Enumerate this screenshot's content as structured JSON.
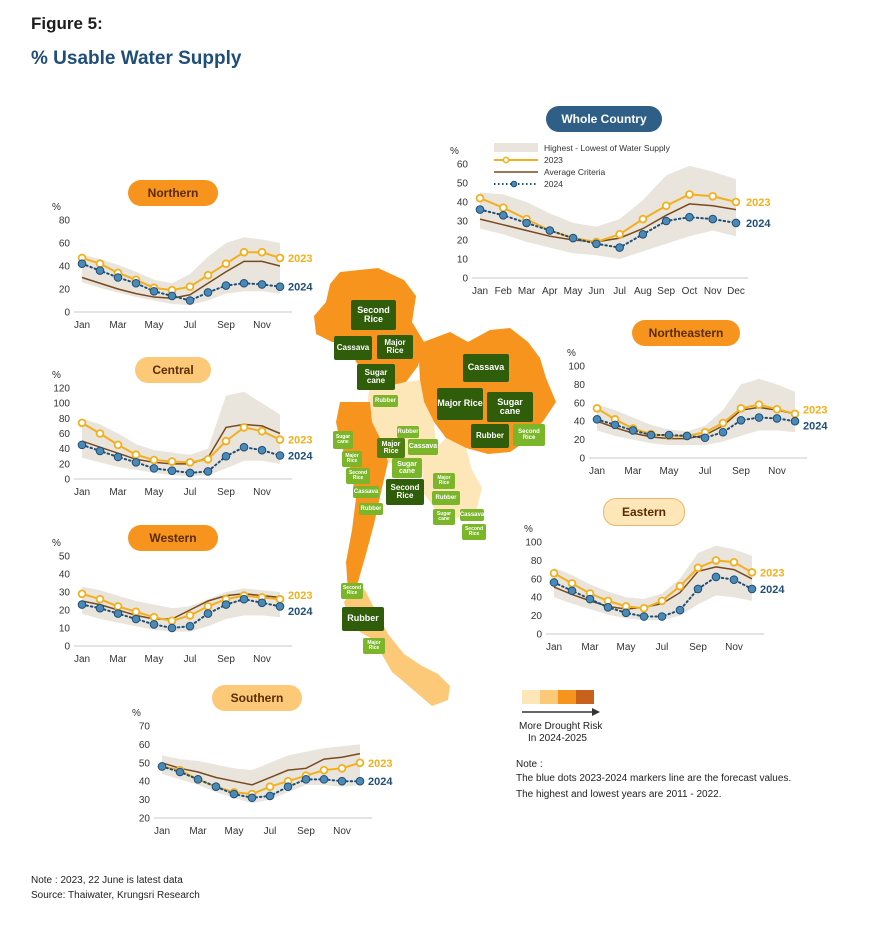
{
  "figure_label": "Figure 5:",
  "title": "% Usable Water Supply",
  "legend": {
    "band": "Highest - Lowest of Water Supply",
    "y2023": "2023",
    "avg": "Average Criteria",
    "y2024": "2024"
  },
  "colors": {
    "c2023": "#f2b01e",
    "c2024": "#1f4e79",
    "avg": "#7a4a1e",
    "band": "#e9e4dc",
    "dot2024": "#4a8ab5"
  },
  "drought": {
    "label": "More Drought Risk",
    "label2": "In 2024-2025",
    "colors": [
      "#fde6b8",
      "#fcc978",
      "#f7941d",
      "#c8611b"
    ]
  },
  "note": {
    "heading": "Note :",
    "line1": "The blue dots 2023-2024 markers line are the forecast values.",
    "line2": "The highest and lowest years are 2011 - 2022."
  },
  "footer": {
    "line1": "Note : 2023, 22 June is latest data",
    "line2": "Source: Thaiwater, Krungsri Research"
  },
  "map_labels": {
    "north_second_rice": "Second Rice",
    "north_cassava": "Cassava",
    "north_major_rice": "Major Rice",
    "north_sugarcane": "Sugar cane",
    "north_rubber": "Rubber",
    "ne_cassava": "Cassava",
    "ne_major_rice": "Major Rice",
    "ne_sugarcane": "Sugar cane",
    "ne_rubber": "Rubber",
    "ne_second_rice": "Second Rice",
    "c_rubber": "Rubber",
    "c_major_rice": "Major Rice",
    "c_cassava": "Cassava",
    "c_sugarcane": "Sugar cane",
    "c_second_rice": "Second Rice",
    "w_sugarcane": "Sugar cane",
    "w_major_rice": "Major Rice",
    "w_second_rice": "Second Rice",
    "w_cassava": "Cassava",
    "w_rubber": "Rubber",
    "e_major_rice": "Major Rice",
    "e_rubber": "Rubber",
    "e_sugarcane": "Sugar cane",
    "e_cassava": "Cassava",
    "e_second_rice": "Second Rice",
    "s_second_rice": "Second Rice",
    "s_rubber": "Rubber",
    "s_major_rice": "Major Rice"
  },
  "chart_data": [
    {
      "id": "whole",
      "title": "Whole Country",
      "type": "line",
      "ylabel": "%",
      "yticks": [
        0,
        10,
        20,
        30,
        40,
        50,
        60
      ],
      "x": [
        "Jan",
        "Feb",
        "Mar",
        "Apr",
        "May",
        "Jun",
        "Jul",
        "Aug",
        "Sep",
        "Oct",
        "Nov",
        "Dec"
      ],
      "xticks": [
        "Jan",
        "Feb",
        "Mar",
        "Apr",
        "May",
        "Jun",
        "Jul",
        "Aug",
        "Sep",
        "Oct",
        "Nov",
        "Dec"
      ],
      "end_labels": {
        "y2023": "2023",
        "y2024": "2024"
      },
      "series": [
        {
          "name": "2023",
          "values": [
            42,
            37,
            31,
            25,
            21,
            19,
            23,
            31,
            38,
            44,
            43,
            40
          ]
        },
        {
          "name": "2024",
          "values": [
            36,
            33,
            29,
            25,
            21,
            18,
            16,
            23,
            30,
            32,
            31,
            29
          ]
        },
        {
          "name": "Average Criteria",
          "values": [
            31,
            28,
            25,
            22,
            20,
            19,
            21,
            26,
            33,
            39,
            38,
            36
          ]
        }
      ],
      "band": {
        "high": [
          45,
          44,
          40,
          34,
          29,
          27,
          31,
          41,
          54,
          59,
          56,
          52
        ],
        "low": [
          26,
          23,
          19,
          16,
          13,
          12,
          10,
          14,
          18,
          22,
          25,
          22
        ]
      }
    },
    {
      "id": "northern",
      "title": "Northern",
      "type": "line",
      "ylabel": "%",
      "yticks": [
        0,
        20,
        40,
        60,
        80
      ],
      "x": [
        "Jan",
        "Feb",
        "Mar",
        "Apr",
        "May",
        "Jun",
        "Jul",
        "Aug",
        "Sep",
        "Oct",
        "Nov",
        "Dec"
      ],
      "xticks": [
        "Jan",
        "Mar",
        "May",
        "Jul",
        "Sep",
        "Nov"
      ],
      "end_labels": {
        "y2023": "2023",
        "y2024": "2024"
      },
      "series": [
        {
          "name": "2023",
          "values": [
            47,
            42,
            34,
            28,
            21,
            19,
            22,
            32,
            42,
            52,
            52,
            47
          ]
        },
        {
          "name": "2024",
          "values": [
            42,
            36,
            30,
            25,
            18,
            14,
            10,
            17,
            23,
            25,
            24,
            22
          ]
        },
        {
          "name": "Average Criteria",
          "values": [
            30,
            25,
            20,
            16,
            13,
            12,
            15,
            25,
            35,
            44,
            44,
            40
          ]
        }
      ],
      "band": {
        "high": [
          50,
          46,
          41,
          35,
          28,
          25,
          33,
          48,
          60,
          65,
          63,
          60
        ],
        "low": [
          26,
          21,
          17,
          13,
          10,
          7,
          6,
          10,
          16,
          18,
          18,
          16
        ]
      }
    },
    {
      "id": "central",
      "title": "Central",
      "type": "line",
      "ylabel": "%",
      "yticks": [
        0,
        20,
        40,
        60,
        80,
        100,
        120
      ],
      "x": [
        "Jan",
        "Feb",
        "Mar",
        "Apr",
        "May",
        "Jun",
        "Jul",
        "Aug",
        "Sep",
        "Oct",
        "Nov",
        "Dec"
      ],
      "xticks": [
        "Jan",
        "Mar",
        "May",
        "Jul",
        "Sep",
        "Nov"
      ],
      "end_labels": {
        "y2023": "2023",
        "y2024": "2024"
      },
      "series": [
        {
          "name": "2023",
          "values": [
            74,
            60,
            45,
            32,
            25,
            23,
            22,
            26,
            50,
            68,
            63,
            52
          ]
        },
        {
          "name": "2024",
          "values": [
            45,
            37,
            29,
            22,
            14,
            11,
            8,
            10,
            30,
            42,
            38,
            31
          ]
        },
        {
          "name": "Average Criteria",
          "values": [
            50,
            42,
            34,
            26,
            22,
            20,
            20,
            28,
            68,
            72,
            70,
            60
          ]
        }
      ],
      "band": {
        "high": [
          80,
          72,
          60,
          46,
          38,
          35,
          32,
          40,
          110,
          115,
          100,
          85
        ],
        "low": [
          28,
          22,
          16,
          12,
          8,
          5,
          4,
          5,
          14,
          24,
          24,
          20
        ]
      }
    },
    {
      "id": "western",
      "title": "Western",
      "type": "line",
      "ylabel": "%",
      "yticks": [
        0,
        10,
        20,
        30,
        40,
        50
      ],
      "x": [
        "Jan",
        "Feb",
        "Mar",
        "Apr",
        "May",
        "Jun",
        "Jul",
        "Aug",
        "Sep",
        "Oct",
        "Nov",
        "Dec"
      ],
      "xticks": [
        "Jan",
        "Mar",
        "May",
        "Jul",
        "Sep",
        "Nov"
      ],
      "end_labels": {
        "y2023": "2023",
        "y2024": "2024"
      },
      "series": [
        {
          "name": "2023",
          "values": [
            29,
            26,
            22,
            19,
            16,
            14,
            17,
            22,
            26,
            28,
            27,
            26
          ]
        },
        {
          "name": "2024",
          "values": [
            23,
            21,
            18,
            15,
            12,
            10,
            11,
            18,
            23,
            26,
            24,
            22
          ]
        },
        {
          "name": "Average Criteria",
          "values": [
            25,
            23,
            20,
            17,
            15,
            15,
            20,
            25,
            28,
            29,
            28,
            27
          ]
        }
      ],
      "band": {
        "high": [
          33,
          31,
          28,
          25,
          23,
          21,
          22,
          26,
          30,
          32,
          31,
          30
        ],
        "low": [
          18,
          15,
          13,
          11,
          9,
          8,
          8,
          11,
          15,
          17,
          17,
          16
        ]
      }
    },
    {
      "id": "northeastern",
      "title": "Northeastern",
      "type": "line",
      "ylabel": "%",
      "yticks": [
        0,
        20,
        40,
        60,
        80,
        100
      ],
      "x": [
        "Jan",
        "Feb",
        "Mar",
        "Apr",
        "May",
        "Jun",
        "Jul",
        "Aug",
        "Sep",
        "Oct",
        "Nov",
        "Dec"
      ],
      "xticks": [
        "Jan",
        "Mar",
        "May",
        "Jul",
        "Sep",
        "Nov"
      ],
      "end_labels": {
        "y2023": "2023",
        "y2024": "2024"
      },
      "series": [
        {
          "name": "2023",
          "values": [
            54,
            42,
            32,
            26,
            24,
            24,
            28,
            38,
            54,
            58,
            53,
            48
          ]
        },
        {
          "name": "2024",
          "values": [
            42,
            36,
            30,
            25,
            25,
            24,
            22,
            28,
            41,
            44,
            43,
            40
          ]
        },
        {
          "name": "Average Criteria",
          "values": [
            40,
            33,
            27,
            23,
            21,
            21,
            25,
            35,
            52,
            55,
            52,
            48
          ]
        }
      ],
      "band": {
        "high": [
          58,
          52,
          44,
          36,
          31,
          29,
          35,
          52,
          80,
          86,
          80,
          72
        ],
        "low": [
          30,
          24,
          20,
          16,
          14,
          14,
          14,
          18,
          24,
          30,
          30,
          28
        ]
      }
    },
    {
      "id": "eastern",
      "title": "Eastern",
      "type": "line",
      "ylabel": "%",
      "yticks": [
        0,
        20,
        40,
        60,
        80,
        100
      ],
      "x": [
        "Jan",
        "Feb",
        "Mar",
        "Apr",
        "May",
        "Jun",
        "Jul",
        "Aug",
        "Sep",
        "Oct",
        "Nov",
        "Dec"
      ],
      "xticks": [
        "Jan",
        "Mar",
        "May",
        "Jul",
        "Sep",
        "Nov"
      ],
      "end_labels": {
        "y2023": "2023",
        "y2024": "2024"
      },
      "series": [
        {
          "name": "2023",
          "values": [
            66,
            55,
            44,
            36,
            30,
            28,
            36,
            52,
            72,
            80,
            78,
            67
          ]
        },
        {
          "name": "2024",
          "values": [
            56,
            47,
            38,
            29,
            23,
            19,
            19,
            26,
            49,
            62,
            59,
            49
          ]
        },
        {
          "name": "Average Criteria",
          "values": [
            51,
            43,
            36,
            30,
            27,
            29,
            33,
            45,
            68,
            73,
            70,
            60
          ]
        }
      ],
      "band": {
        "high": [
          72,
          64,
          54,
          46,
          40,
          38,
          44,
          60,
          88,
          96,
          92,
          85
        ],
        "low": [
          40,
          33,
          27,
          21,
          17,
          15,
          15,
          20,
          32,
          42,
          40,
          36
        ]
      }
    },
    {
      "id": "southern",
      "title": "Southern",
      "type": "line",
      "ylabel": "%",
      "yticks": [
        20,
        30,
        40,
        50,
        60,
        70
      ],
      "x": [
        "Jan",
        "Feb",
        "Mar",
        "Apr",
        "May",
        "Jun",
        "Jul",
        "Aug",
        "Sep",
        "Oct",
        "Nov",
        "Dec"
      ],
      "xticks": [
        "Jan",
        "Mar",
        "May",
        "Jul",
        "Sep",
        "Nov"
      ],
      "end_labels": {
        "y2023": "2023",
        "y2024": "2024"
      },
      "series": [
        {
          "name": "2023",
          "values": [
            48,
            46,
            41,
            37,
            34,
            33,
            37,
            40,
            43,
            46,
            47,
            50
          ]
        },
        {
          "name": "2024",
          "values": [
            48,
            45,
            41,
            37,
            33,
            31,
            32,
            37,
            41,
            41,
            40,
            40
          ]
        },
        {
          "name": "Average Criteria",
          "values": [
            50,
            47,
            45,
            42,
            40,
            38,
            42,
            46,
            47,
            52,
            53,
            55
          ]
        }
      ],
      "band": {
        "high": [
          54,
          52,
          51,
          49,
          47,
          46,
          50,
          54,
          56,
          58,
          59,
          60
        ],
        "low": [
          44,
          41,
          38,
          34,
          31,
          28,
          30,
          34,
          38,
          38,
          37,
          38
        ]
      }
    }
  ]
}
